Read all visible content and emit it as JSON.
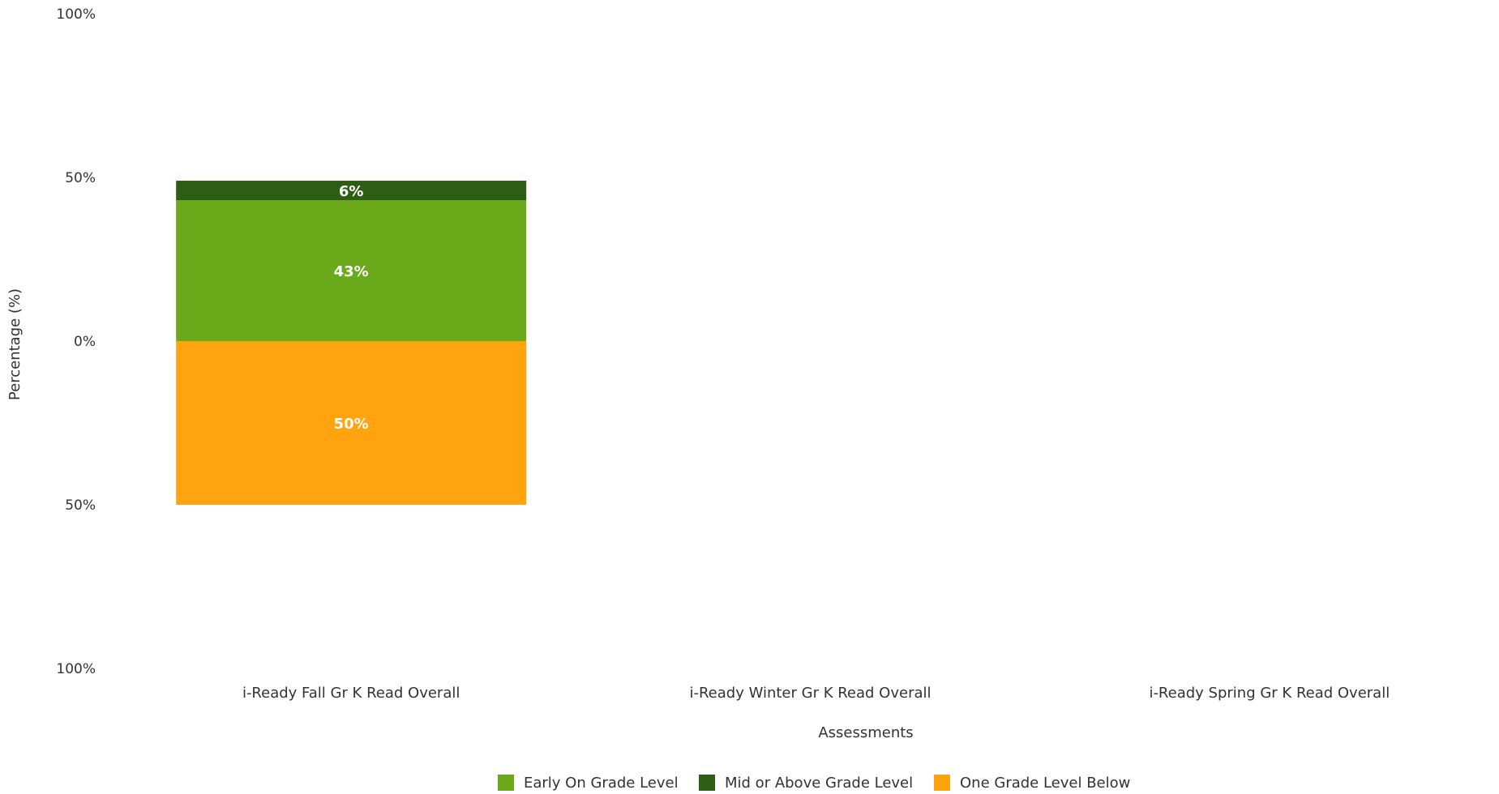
{
  "chart_data": {
    "type": "bar",
    "stacked": true,
    "diverging": true,
    "title": "",
    "xlabel": "Assessments",
    "ylabel": "Percentage (%)",
    "ylim": [
      -100,
      100
    ],
    "y_ticks": [
      {
        "value": 100,
        "label": "100%"
      },
      {
        "value": 50,
        "label": "50%"
      },
      {
        "value": 0,
        "label": "0%"
      },
      {
        "value": -50,
        "label": "50%"
      },
      {
        "value": -100,
        "label": "100%"
      }
    ],
    "categories": [
      "i-Ready Fall Gr K Read Overall",
      "i-Ready Winter Gr K Read Overall",
      "i-Ready Spring Gr K Read Overall"
    ],
    "series": [
      {
        "name": "Early On Grade Level",
        "color": "#6aaa1a",
        "direction": "up",
        "values": [
          43,
          null,
          null
        ],
        "labels": [
          "43%",
          null,
          null
        ]
      },
      {
        "name": "Mid or Above Grade Level",
        "color": "#2d5e14",
        "direction": "up",
        "values": [
          6,
          null,
          null
        ],
        "labels": [
          "6%",
          null,
          null
        ]
      },
      {
        "name": "One Grade Level Below",
        "color": "#ffa40f",
        "direction": "down",
        "values": [
          50,
          null,
          null
        ],
        "labels": [
          "50%",
          null,
          null
        ]
      }
    ],
    "legend_position": "bottom",
    "grid": false
  }
}
